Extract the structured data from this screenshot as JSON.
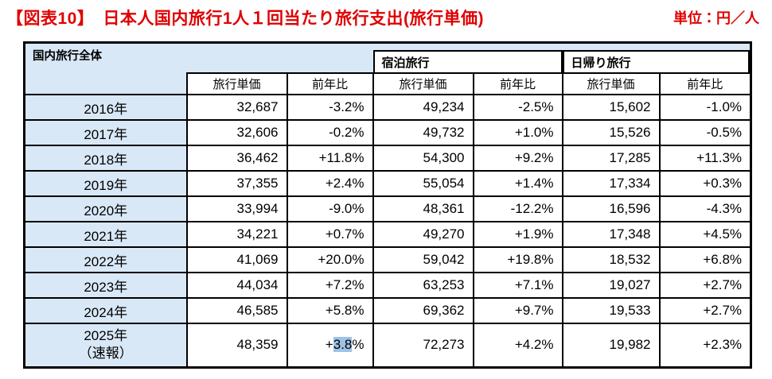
{
  "title": "【図表10】　日本人国内旅行1人１回当たり旅行支出(旅行単価)",
  "unit_label": "単位：円／人",
  "colors": {
    "accent_red": "#e00000",
    "header_blue": "#d9e8f6",
    "selection_highlight_blue": "#9dc3e6"
  },
  "table": {
    "corner_label": "国内旅行全体",
    "group_headers": [
      "宿泊旅行",
      "日帰り旅行"
    ],
    "sub_headers": [
      "旅行単価",
      "前年比",
      "旅行単価",
      "前年比",
      "旅行単価",
      "前年比"
    ],
    "rows": [
      {
        "year": "2016年",
        "values": [
          "32,687",
          "-3.2%",
          "49,234",
          "-2.5%",
          "15,602",
          "-1.0%"
        ]
      },
      {
        "year": "2017年",
        "values": [
          "32,606",
          "-0.2%",
          "49,732",
          "+1.0%",
          "15,526",
          "-0.5%"
        ]
      },
      {
        "year": "2018年",
        "values": [
          "36,462",
          "+11.8%",
          "54,300",
          "+9.2%",
          "17,285",
          "+11.3%"
        ]
      },
      {
        "year": "2019年",
        "values": [
          "37,355",
          "+2.4%",
          "55,054",
          "+1.4%",
          "17,334",
          "+0.3%"
        ]
      },
      {
        "year": "2020年",
        "values": [
          "33,994",
          "-9.0%",
          "48,361",
          "-12.2%",
          "16,596",
          "-4.3%"
        ]
      },
      {
        "year": "2021年",
        "values": [
          "34,221",
          "+0.7%",
          "49,270",
          "+1.9%",
          "17,348",
          "+4.5%"
        ]
      },
      {
        "year": "2022年",
        "values": [
          "41,069",
          "+20.0%",
          "59,042",
          "+19.8%",
          "18,532",
          "+6.8%"
        ]
      },
      {
        "year": "2023年",
        "values": [
          "44,034",
          "+7.2%",
          "63,253",
          "+7.1%",
          "19,027",
          "+2.7%"
        ]
      },
      {
        "year": "2024年",
        "values": [
          "46,585",
          "+5.8%",
          "69,362",
          "+9.7%",
          "19,533",
          "+2.7%"
        ]
      },
      {
        "year_line1": "2025年",
        "year_line2": "（速報）",
        "values": [
          "48,359",
          {
            "prefix": "+",
            "highlight": "3.8",
            "suffix": "%"
          },
          "72,273",
          "+4.2%",
          "19,982",
          "+2.3%"
        ]
      }
    ]
  }
}
